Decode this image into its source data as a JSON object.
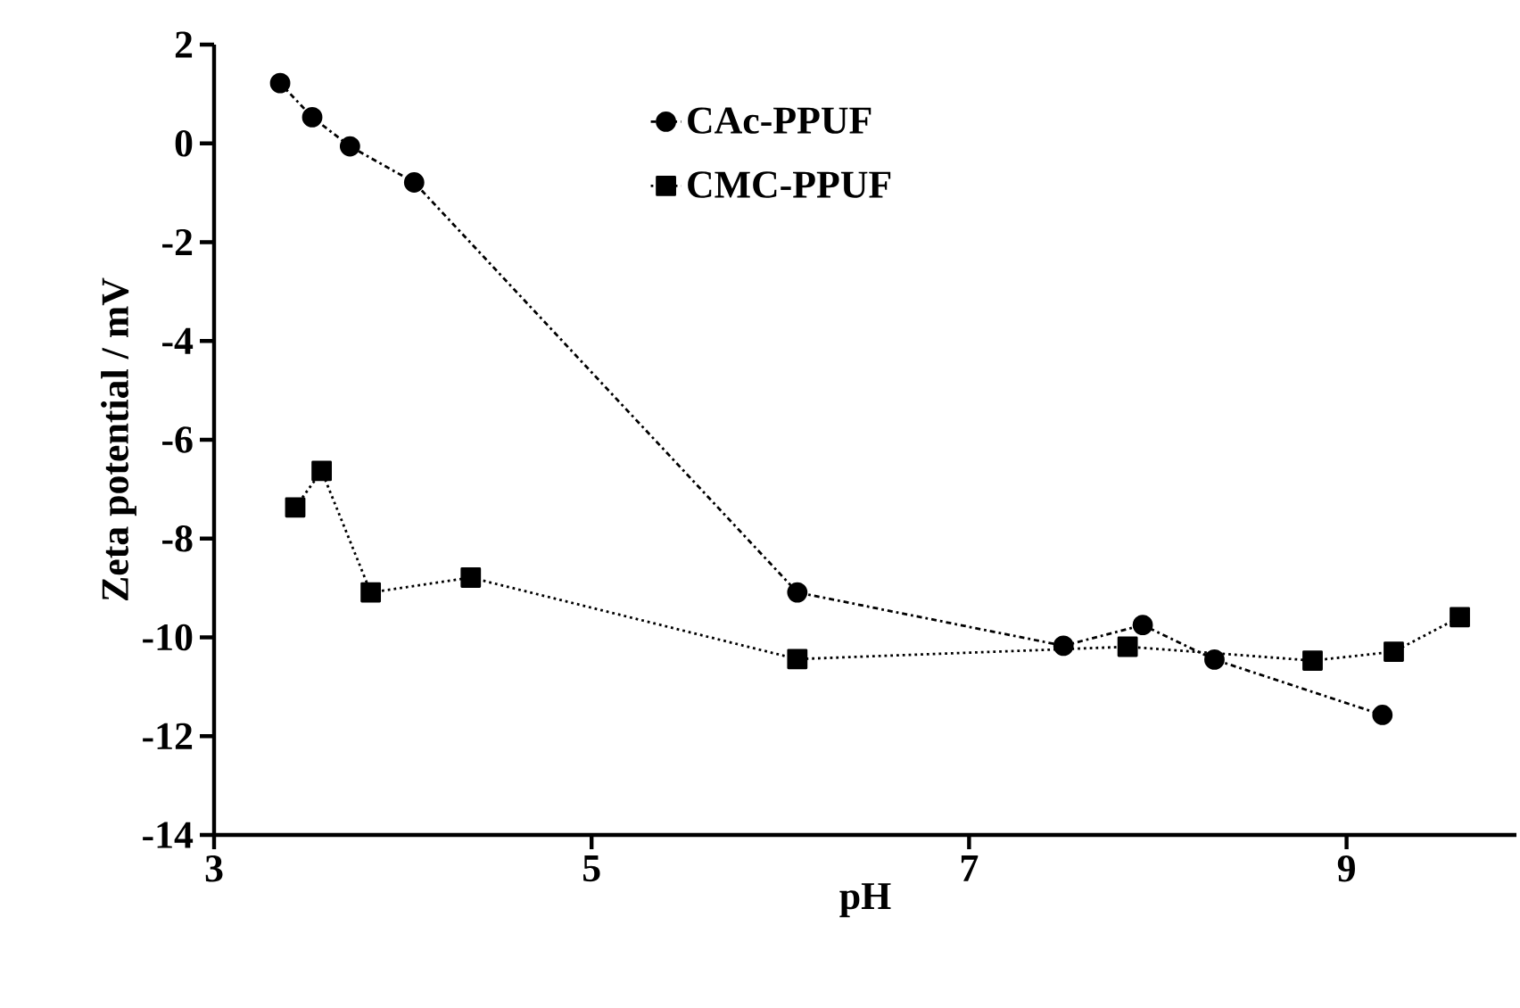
{
  "chart_data": {
    "type": "line",
    "xlabel": "pH",
    "ylabel": "Zeta potential / mV",
    "xlim": [
      3,
      9.9
    ],
    "ylim": [
      -14,
      2
    ],
    "xticks": [
      3,
      5,
      7,
      9
    ],
    "yticks": [
      -14,
      -12,
      -10,
      -8,
      -6,
      -4,
      -2,
      0,
      2
    ],
    "grid": false,
    "legend": "top",
    "series": [
      {
        "name": "CAc-PPUF",
        "color": "#000000",
        "marker": "circle",
        "line_style": "dashdot",
        "x": [
          3.35,
          3.52,
          3.72,
          4.06,
          6.09,
          7.5,
          7.92,
          8.3,
          9.19
        ],
        "values": [
          1.22,
          0.53,
          -0.06,
          -0.79,
          -9.09,
          -10.17,
          -9.75,
          -10.45,
          -11.57
        ]
      },
      {
        "name": "CMC-PPUF",
        "color": "#000000",
        "marker": "square",
        "line_style": "dotted",
        "x": [
          3.43,
          3.57,
          3.83,
          4.36,
          6.09,
          7.84,
          8.82,
          9.25,
          9.6
        ],
        "values": [
          -7.37,
          -6.63,
          -9.09,
          -8.79,
          -10.44,
          -10.19,
          -10.47,
          -10.29,
          -9.59
        ]
      }
    ]
  }
}
